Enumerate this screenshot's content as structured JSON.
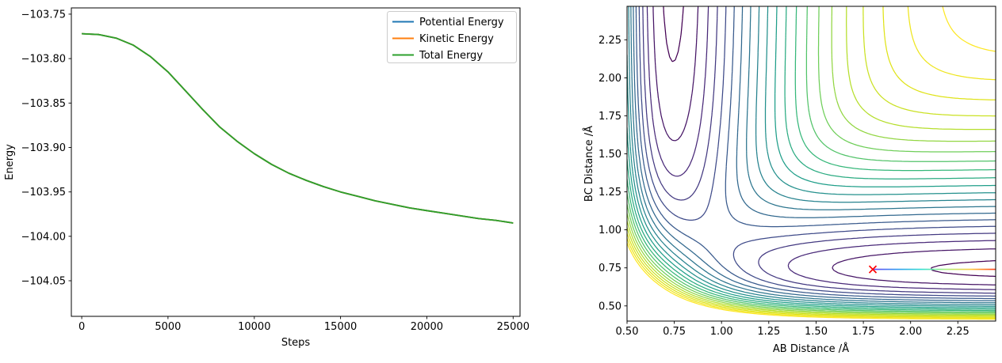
{
  "figure": {
    "background": "#ffffff"
  },
  "chart_data": [
    {
      "type": "line",
      "title": "",
      "xlabel": "Steps",
      "ylabel": "Energy",
      "xlim": [
        -600,
        25400
      ],
      "ylim": [
        -104.09,
        -103.743
      ],
      "grid": false,
      "legend_position": "upper right",
      "xticks": [
        0,
        5000,
        10000,
        15000,
        20000,
        25000
      ],
      "xticklabels": [
        "0",
        "5000",
        "10000",
        "15000",
        "20000",
        "25000"
      ],
      "yticks": [
        -103.75,
        -103.8,
        -103.85,
        -103.9,
        -103.95,
        -104.0,
        -104.05
      ],
      "yticklabels": [
        "−103.75",
        "−103.80",
        "−103.85",
        "−103.90",
        "−103.95",
        "−104.00",
        "−104.05"
      ],
      "x": [
        0,
        1000,
        2000,
        3000,
        4000,
        5000,
        6000,
        7000,
        8000,
        9000,
        10000,
        11000,
        12000,
        13000,
        14000,
        15000,
        16000,
        17000,
        18000,
        19000,
        20000,
        21000,
        22000,
        23000,
        24000,
        25000
      ],
      "y": [
        -103.772,
        -103.773,
        -103.777,
        -103.785,
        -103.798,
        -103.815,
        -103.836,
        -103.857,
        -103.877,
        -103.893,
        -103.907,
        -103.919,
        -103.929,
        -103.937,
        -103.944,
        -103.95,
        -103.955,
        -103.96,
        -103.964,
        -103.968,
        -103.971,
        -103.974,
        -103.977,
        -103.98,
        -103.982,
        -103.985
      ],
      "series": [
        {
          "name": "Potential Energy",
          "color": "#1f77b4"
        },
        {
          "name": "Kinetic Energy",
          "color": "#ff7f0e"
        },
        {
          "name": "Total Energy",
          "color": "#2ca02c"
        }
      ],
      "note": "all three curves overlap; green Total Energy drawn on top"
    },
    {
      "type": "contour",
      "title": "",
      "xlabel": "AB Distance /Å",
      "ylabel": "BC Distance /Å",
      "xlim": [
        0.5,
        2.45
      ],
      "ylim": [
        0.4,
        2.47
      ],
      "xticks": [
        0.5,
        0.75,
        1.0,
        1.25,
        1.5,
        1.75,
        2.0,
        2.25
      ],
      "xticklabels": [
        "0.50",
        "0.75",
        "1.00",
        "1.25",
        "1.50",
        "1.75",
        "2.00",
        "2.25"
      ],
      "yticks": [
        0.5,
        0.75,
        1.0,
        1.25,
        1.5,
        1.75,
        2.0,
        2.25
      ],
      "yticklabels": [
        "0.50",
        "0.75",
        "1.00",
        "1.25",
        "1.50",
        "1.75",
        "2.00",
        "2.25"
      ],
      "surface": {
        "model": "LEPS",
        "D": 104.2,
        "beta": 2.0,
        "r0": 0.742,
        "collinear": true
      },
      "levels": {
        "min": -102,
        "max": -12,
        "count": 21
      },
      "colormap": {
        "name": "viridis",
        "stops": [
          "#440154",
          "#482878",
          "#3e4a89",
          "#31688e",
          "#26828e",
          "#1f9e89",
          "#35b779",
          "#6ece58",
          "#b5de2b",
          "#dfe318",
          "#fde725"
        ]
      },
      "trajectory": {
        "bc_distance": 0.74,
        "ab_start": 1.8,
        "ab_end": 2.45,
        "colors": [
          "#6a3ef5",
          "#2e9bf0",
          "#35e0d0",
          "#aef07a",
          "#ffc83d",
          "#ff3c1a"
        ]
      },
      "marker": {
        "ab": 1.8,
        "bc": 0.74,
        "symbol": "x",
        "color": "#ff0000"
      }
    }
  ]
}
